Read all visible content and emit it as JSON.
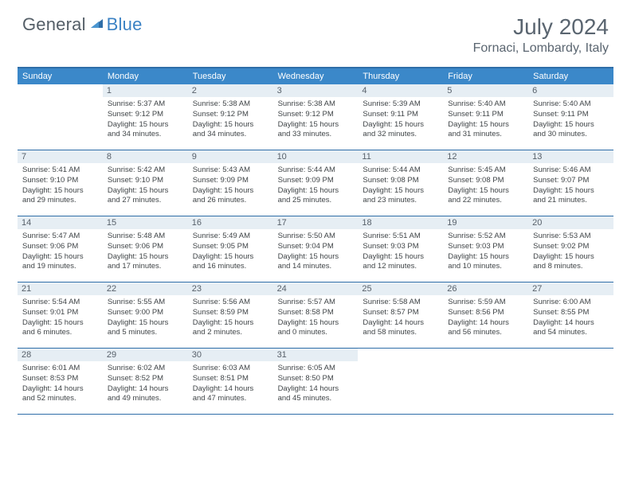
{
  "brand": {
    "part1": "General",
    "part2": "Blue"
  },
  "title": "July 2024",
  "location": "Fornaci, Lombardy, Italy",
  "colors": {
    "header_bar": "#3b88c9",
    "border": "#2f6ea8",
    "daynum_bg": "#e6eef4",
    "text": "#404548",
    "title_text": "#5a6570",
    "brand_gray": "#555f68",
    "brand_blue": "#3b82c4",
    "background": "#ffffff"
  },
  "day_names": [
    "Sunday",
    "Monday",
    "Tuesday",
    "Wednesday",
    "Thursday",
    "Friday",
    "Saturday"
  ],
  "weeks": [
    [
      null,
      {
        "n": "1",
        "sunrise": "Sunrise: 5:37 AM",
        "sunset": "Sunset: 9:12 PM",
        "d1": "Daylight: 15 hours",
        "d2": "and 34 minutes."
      },
      {
        "n": "2",
        "sunrise": "Sunrise: 5:38 AM",
        "sunset": "Sunset: 9:12 PM",
        "d1": "Daylight: 15 hours",
        "d2": "and 34 minutes."
      },
      {
        "n": "3",
        "sunrise": "Sunrise: 5:38 AM",
        "sunset": "Sunset: 9:12 PM",
        "d1": "Daylight: 15 hours",
        "d2": "and 33 minutes."
      },
      {
        "n": "4",
        "sunrise": "Sunrise: 5:39 AM",
        "sunset": "Sunset: 9:11 PM",
        "d1": "Daylight: 15 hours",
        "d2": "and 32 minutes."
      },
      {
        "n": "5",
        "sunrise": "Sunrise: 5:40 AM",
        "sunset": "Sunset: 9:11 PM",
        "d1": "Daylight: 15 hours",
        "d2": "and 31 minutes."
      },
      {
        "n": "6",
        "sunrise": "Sunrise: 5:40 AM",
        "sunset": "Sunset: 9:11 PM",
        "d1": "Daylight: 15 hours",
        "d2": "and 30 minutes."
      }
    ],
    [
      {
        "n": "7",
        "sunrise": "Sunrise: 5:41 AM",
        "sunset": "Sunset: 9:10 PM",
        "d1": "Daylight: 15 hours",
        "d2": "and 29 minutes."
      },
      {
        "n": "8",
        "sunrise": "Sunrise: 5:42 AM",
        "sunset": "Sunset: 9:10 PM",
        "d1": "Daylight: 15 hours",
        "d2": "and 27 minutes."
      },
      {
        "n": "9",
        "sunrise": "Sunrise: 5:43 AM",
        "sunset": "Sunset: 9:09 PM",
        "d1": "Daylight: 15 hours",
        "d2": "and 26 minutes."
      },
      {
        "n": "10",
        "sunrise": "Sunrise: 5:44 AM",
        "sunset": "Sunset: 9:09 PM",
        "d1": "Daylight: 15 hours",
        "d2": "and 25 minutes."
      },
      {
        "n": "11",
        "sunrise": "Sunrise: 5:44 AM",
        "sunset": "Sunset: 9:08 PM",
        "d1": "Daylight: 15 hours",
        "d2": "and 23 minutes."
      },
      {
        "n": "12",
        "sunrise": "Sunrise: 5:45 AM",
        "sunset": "Sunset: 9:08 PM",
        "d1": "Daylight: 15 hours",
        "d2": "and 22 minutes."
      },
      {
        "n": "13",
        "sunrise": "Sunrise: 5:46 AM",
        "sunset": "Sunset: 9:07 PM",
        "d1": "Daylight: 15 hours",
        "d2": "and 21 minutes."
      }
    ],
    [
      {
        "n": "14",
        "sunrise": "Sunrise: 5:47 AM",
        "sunset": "Sunset: 9:06 PM",
        "d1": "Daylight: 15 hours",
        "d2": "and 19 minutes."
      },
      {
        "n": "15",
        "sunrise": "Sunrise: 5:48 AM",
        "sunset": "Sunset: 9:06 PM",
        "d1": "Daylight: 15 hours",
        "d2": "and 17 minutes."
      },
      {
        "n": "16",
        "sunrise": "Sunrise: 5:49 AM",
        "sunset": "Sunset: 9:05 PM",
        "d1": "Daylight: 15 hours",
        "d2": "and 16 minutes."
      },
      {
        "n": "17",
        "sunrise": "Sunrise: 5:50 AM",
        "sunset": "Sunset: 9:04 PM",
        "d1": "Daylight: 15 hours",
        "d2": "and 14 minutes."
      },
      {
        "n": "18",
        "sunrise": "Sunrise: 5:51 AM",
        "sunset": "Sunset: 9:03 PM",
        "d1": "Daylight: 15 hours",
        "d2": "and 12 minutes."
      },
      {
        "n": "19",
        "sunrise": "Sunrise: 5:52 AM",
        "sunset": "Sunset: 9:03 PM",
        "d1": "Daylight: 15 hours",
        "d2": "and 10 minutes."
      },
      {
        "n": "20",
        "sunrise": "Sunrise: 5:53 AM",
        "sunset": "Sunset: 9:02 PM",
        "d1": "Daylight: 15 hours",
        "d2": "and 8 minutes."
      }
    ],
    [
      {
        "n": "21",
        "sunrise": "Sunrise: 5:54 AM",
        "sunset": "Sunset: 9:01 PM",
        "d1": "Daylight: 15 hours",
        "d2": "and 6 minutes."
      },
      {
        "n": "22",
        "sunrise": "Sunrise: 5:55 AM",
        "sunset": "Sunset: 9:00 PM",
        "d1": "Daylight: 15 hours",
        "d2": "and 5 minutes."
      },
      {
        "n": "23",
        "sunrise": "Sunrise: 5:56 AM",
        "sunset": "Sunset: 8:59 PM",
        "d1": "Daylight: 15 hours",
        "d2": "and 2 minutes."
      },
      {
        "n": "24",
        "sunrise": "Sunrise: 5:57 AM",
        "sunset": "Sunset: 8:58 PM",
        "d1": "Daylight: 15 hours",
        "d2": "and 0 minutes."
      },
      {
        "n": "25",
        "sunrise": "Sunrise: 5:58 AM",
        "sunset": "Sunset: 8:57 PM",
        "d1": "Daylight: 14 hours",
        "d2": "and 58 minutes."
      },
      {
        "n": "26",
        "sunrise": "Sunrise: 5:59 AM",
        "sunset": "Sunset: 8:56 PM",
        "d1": "Daylight: 14 hours",
        "d2": "and 56 minutes."
      },
      {
        "n": "27",
        "sunrise": "Sunrise: 6:00 AM",
        "sunset": "Sunset: 8:55 PM",
        "d1": "Daylight: 14 hours",
        "d2": "and 54 minutes."
      }
    ],
    [
      {
        "n": "28",
        "sunrise": "Sunrise: 6:01 AM",
        "sunset": "Sunset: 8:53 PM",
        "d1": "Daylight: 14 hours",
        "d2": "and 52 minutes."
      },
      {
        "n": "29",
        "sunrise": "Sunrise: 6:02 AM",
        "sunset": "Sunset: 8:52 PM",
        "d1": "Daylight: 14 hours",
        "d2": "and 49 minutes."
      },
      {
        "n": "30",
        "sunrise": "Sunrise: 6:03 AM",
        "sunset": "Sunset: 8:51 PM",
        "d1": "Daylight: 14 hours",
        "d2": "and 47 minutes."
      },
      {
        "n": "31",
        "sunrise": "Sunrise: 6:05 AM",
        "sunset": "Sunset: 8:50 PM",
        "d1": "Daylight: 14 hours",
        "d2": "and 45 minutes."
      },
      null,
      null,
      null
    ]
  ]
}
